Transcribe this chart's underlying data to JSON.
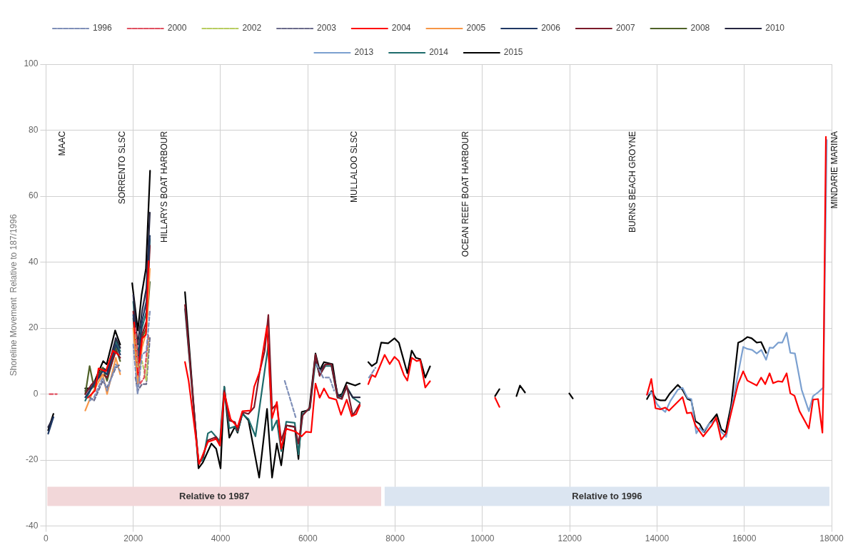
{
  "chart_data": {
    "type": "line",
    "ylabel": "Shoreline Movement  Relative to 187/1996",
    "xlim": [
      0,
      18000
    ],
    "xticks": [
      0,
      2000,
      4000,
      6000,
      8000,
      10000,
      12000,
      14000,
      16000,
      18000
    ],
    "ylim": [
      -40,
      100
    ],
    "yticks": [
      -40,
      -20,
      0,
      20,
      40,
      60,
      80,
      100
    ],
    "grid": true,
    "legend": "top",
    "marker": "none",
    "annotations": [
      "MAAC",
      "SORRENTO SLSC",
      "HILLARYS BOAT HARBOUR",
      "MULLALOO SLSC",
      "OCEAN REEF BOAT HARBOUR",
      "BURNS BEACH GROYNE",
      "MINDARIE MARINA"
    ],
    "bands": [
      {
        "axis": "x",
        "from": 30,
        "to": 7680,
        "label": "Relative to 1987",
        "color": "#f2d7d9"
      },
      {
        "axis": "x",
        "from": 7760,
        "to": 17950,
        "label": "Relative to 1996",
        "color": "#dbe5f1"
      }
    ],
    "series": [
      {
        "name": "1996",
        "color": "#7f8fb8",
        "line_style": "dashed",
        "x": [
          1000,
          1100,
          1300,
          1400,
          1600,
          1700,
          1850,
          2000,
          2100,
          2200,
          2300,
          2380,
          4000,
          5470,
          5720,
          6000,
          6200,
          6350,
          6500,
          6600,
          7000,
          7400,
          7550
        ],
        "values": [
          -2,
          -1,
          5,
          1,
          9,
          7,
          null,
          15,
          0,
          12,
          13,
          25,
          null,
          4,
          -7,
          null,
          9,
          5,
          5,
          1,
          null,
          5,
          8
        ]
      },
      {
        "name": "2000",
        "color": "#e05060",
        "line_style": "dashed",
        "x": [
          80,
          250,
          1000,
          2050,
          2150,
          2250,
          2350
        ],
        "values": [
          0,
          0,
          null,
          20,
          3,
          5,
          18
        ]
      },
      {
        "name": "2002",
        "color": "#b8cc60",
        "line_style": "dashed",
        "x": [
          2050,
          2100,
          2200,
          2300,
          2350
        ],
        "values": [
          18,
          8,
          10,
          4,
          17
        ]
      },
      {
        "name": "2003",
        "color": "#6a6a8a",
        "line_style": "dashed",
        "x": [
          1000,
          1100,
          1300,
          1400,
          1600,
          1700,
          1850,
          2050,
          2100,
          2200,
          2300,
          2380
        ],
        "values": [
          -1,
          -2,
          4,
          2,
          8,
          9,
          null,
          5,
          1,
          3,
          3,
          17
        ]
      },
      {
        "name": "2004",
        "color": "#ff0000",
        "line_style": "solid",
        "x": [
          960,
          1125,
          1205,
          1370,
          1535,
          1665,
          1850,
          2020,
          2110,
          2205,
          2290,
          2350,
          2800,
          3185,
          3270,
          3510,
          3710,
          3900,
          3985,
          4085,
          4230,
          4390,
          4500,
          4690,
          4770,
          4900,
          5065,
          5180,
          5290,
          5390,
          5505,
          5720,
          5860,
          5960,
          6075,
          6175,
          6270,
          6370,
          6485,
          6650,
          6760,
          6890,
          7005,
          7105,
          7190,
          7300,
          7385,
          7465,
          7545,
          7760,
          7875,
          7985,
          8085,
          8200,
          8280,
          8380,
          8495,
          8575,
          8690,
          8800,
          9500,
          10290,
          10390,
          12000,
          13770,
          13870,
          13965,
          14080,
          14190,
          14275,
          14585,
          14685,
          14785,
          14880,
          15060,
          15255,
          15355,
          15470,
          15585,
          15860,
          15975,
          16070,
          16285,
          16385,
          16480,
          16580,
          16660,
          16775,
          16870,
          16970,
          17055,
          17150,
          17265,
          17480,
          17575,
          17690,
          17790,
          17810,
          17870
        ],
        "values": [
          -1.1,
          1.1,
          7.8,
          6.9,
          13.2,
          11.9,
          null,
          21.7,
          5.8,
          16.9,
          18,
          40.3,
          null,
          9.7,
          3.9,
          -21.2,
          -14.5,
          -13.6,
          -15.6,
          0.4,
          -7.6,
          -10,
          -5.2,
          -5,
          2.2,
          6.9,
          20.6,
          -7.3,
          -2.4,
          -16.6,
          -10.5,
          -11.4,
          -12.8,
          -11.4,
          -11.6,
          3.2,
          -1.1,
          1.7,
          -1.1,
          -1.7,
          -6.3,
          -1.7,
          -6.7,
          -6.1,
          -3.5,
          null,
          3,
          5.8,
          5.2,
          11.9,
          9.1,
          11.3,
          10,
          5.8,
          4.1,
          11,
          10,
          10.3,
          2,
          3.9,
          null,
          -1.1,
          -3.9,
          null,
          -0.2,
          4.6,
          -4.3,
          -4.6,
          -4.1,
          -5,
          -0.9,
          -5.8,
          -5.6,
          -9.5,
          -12.8,
          -9.5,
          -7.1,
          -13.8,
          -11.9,
          3.2,
          6.9,
          4.1,
          2.6,
          5,
          3,
          6.3,
          3.3,
          3.9,
          3.7,
          6.3,
          0.2,
          -0.5,
          -5.2,
          -10.4,
          -1.7,
          -1.5,
          -11.7,
          1.3,
          78
        ]
      },
      {
        "name": "2005",
        "color": "#f79646",
        "line_style": "solid",
        "x": [
          900,
          1050,
          1300,
          1400,
          1600,
          1700,
          1850,
          2000,
          2100,
          2200,
          2300,
          2380
        ],
        "values": [
          -5,
          0,
          6,
          0,
          11,
          6,
          null,
          20,
          3,
          14,
          19,
          38
        ]
      },
      {
        "name": "2006",
        "color": "#1f3864",
        "line_style": "solid",
        "x": [
          50,
          170,
          500,
          900,
          1050,
          1300,
          1400,
          1600,
          1700,
          1850,
          2000,
          2100,
          2200,
          2300,
          2380
        ],
        "values": [
          -12,
          -7,
          null,
          -1,
          2,
          7,
          6,
          15,
          12,
          null,
          24,
          10,
          22,
          28,
          48
        ]
      },
      {
        "name": "2007",
        "color": "#7b1a2a",
        "line_style": "solid",
        "x": [
          900,
          1050,
          1300,
          1400,
          1600,
          1700,
          1850,
          2000,
          2100,
          2200,
          2300,
          2380,
          2800,
          3185,
          3495,
          3595,
          3710,
          3900,
          3985,
          4085,
          4200,
          4330,
          4390,
          4500,
          4640,
          4770,
          4900,
          5010,
          5095,
          5180,
          5290,
          5390,
          5505,
          5700,
          5785,
          5880,
          6050,
          6175,
          6270,
          6400,
          6540,
          6680,
          6780,
          6890,
          7030,
          7190
        ],
        "values": [
          0,
          3,
          6,
          5,
          13,
          11,
          null,
          25,
          8,
          18,
          22,
          45,
          null,
          27,
          -21,
          -19,
          -14,
          -13,
          -15.5,
          1,
          -8,
          -8.5,
          -11,
          -5.5,
          -6,
          -4,
          7,
          13,
          24,
          -4.5,
          -3,
          -14,
          -9.5,
          -10,
          -15,
          -6.5,
          -4,
          12,
          5.5,
          9,
          9,
          -1,
          -1.5,
          2.5,
          -6.5,
          -3
        ]
      },
      {
        "name": "2008",
        "color": "#4f6228",
        "line_style": "solid",
        "x": [
          900,
          1000,
          1100,
          1300,
          1400,
          1600,
          1700,
          1850,
          2000,
          2100,
          2200,
          2300,
          2380
        ],
        "values": [
          0,
          8.5,
          2,
          8,
          4,
          14,
          10,
          null,
          23,
          6,
          17,
          20,
          34
        ]
      },
      {
        "name": "2010",
        "color": "#262640",
        "line_style": "solid",
        "x": [
          50,
          170,
          500,
          900,
          1050,
          1300,
          1400,
          1600,
          1700,
          1850,
          2000,
          2100,
          2200,
          2300,
          2380,
          4000,
          6175,
          6270,
          6400,
          6540,
          6680,
          6780,
          6890,
          7030,
          7190
        ],
        "values": [
          -10,
          -7,
          null,
          1,
          2,
          8,
          7,
          17,
          14,
          null,
          30,
          15,
          25,
          32,
          55,
          null,
          10,
          7,
          9,
          9,
          0,
          -1,
          2,
          -1,
          -1
        ]
      },
      {
        "name": "2013",
        "color": "#7ba0d0",
        "line_style": "solid",
        "x": [
          13770,
          13870,
          13985,
          14080,
          14190,
          14310,
          14475,
          14585,
          14700,
          14785,
          14900,
          14980,
          15060,
          15200,
          15355,
          15470,
          15585,
          15700,
          15975,
          16070,
          16180,
          16285,
          16390,
          16500,
          16580,
          16660,
          16775,
          16870,
          16970,
          17055,
          17160,
          17315,
          17480,
          17575,
          17680,
          17810,
          17890
        ],
        "values": [
          -0.2,
          0.6,
          -2.8,
          -4.3,
          -5.4,
          -2,
          1.3,
          1.9,
          -1.2,
          -1.5,
          -11.9,
          -10.2,
          -11.5,
          -9,
          -7.8,
          -11.5,
          -13,
          -4.8,
          14.3,
          13.7,
          13.4,
          12.3,
          13.4,
          10.4,
          14.1,
          14,
          15.6,
          15.6,
          18.6,
          12.5,
          12.3,
          1.3,
          -5.2,
          -0.6,
          0.4,
          2,
          77
        ]
      },
      {
        "name": "2014",
        "color": "#1d6b6b",
        "line_style": "solid",
        "x": [
          900,
          1050,
          1300,
          1400,
          1600,
          1700,
          1850,
          2000,
          2100,
          2200,
          2300,
          2380,
          2800,
          3185,
          3495,
          3595,
          3710,
          3790,
          3985,
          4085,
          4200,
          4330,
          4390,
          4500,
          4640,
          4800,
          5095,
          5180,
          5290,
          5390,
          5505,
          5700,
          5785,
          5880,
          6050,
          6175,
          6270,
          6400,
          6540,
          6680,
          6780,
          6890,
          7030,
          7190
        ],
        "values": [
          -2,
          2,
          7,
          6,
          16,
          13,
          null,
          28,
          12,
          20,
          25,
          47,
          null,
          25.8,
          -20.7,
          -20,
          -11.9,
          -11.3,
          -14.3,
          2.2,
          -10.4,
          -9.8,
          -11.4,
          -6.1,
          -7.6,
          -12.8,
          15,
          -11,
          -8,
          -17.3,
          -8.4,
          -8.7,
          -18.3,
          -6.1,
          -4.3,
          10,
          5.8,
          8.5,
          8.5,
          -1.1,
          -0.4,
          2.2,
          -1.1,
          -2.6
        ]
      },
      {
        "name": "2015",
        "color": "#000000",
        "line_style": "solid",
        "x": [
          50,
          170,
          500,
          898,
          1045,
          1310,
          1390,
          1585,
          1700,
          1850,
          1975,
          2105,
          2190,
          2290,
          2385,
          2800,
          3185,
          3495,
          3595,
          3790,
          3900,
          4000,
          4085,
          4200,
          4330,
          4390,
          4500,
          4640,
          4885,
          5065,
          5180,
          5290,
          5390,
          5505,
          5700,
          5785,
          5860,
          6030,
          6175,
          6270,
          6370,
          6565,
          6680,
          6780,
          6890,
          7085,
          7190,
          7300,
          7385,
          7465,
          7575,
          7680,
          7840,
          7985,
          8085,
          8280,
          8380,
          8475,
          8575,
          8690,
          8800,
          9500,
          10290,
          10390,
          10600,
          10780,
          10860,
          10975,
          11500,
          11990,
          12070,
          13000,
          13770,
          13870,
          13985,
          14080,
          14190,
          14295,
          14475,
          14585,
          14700,
          14785,
          14880,
          14980,
          15080,
          15190,
          15370,
          15470,
          15570,
          15700,
          15860,
          15960,
          16070,
          16170,
          16285,
          16385,
          16500
        ],
        "values": [
          -11,
          -6,
          null,
          1.7,
          1.7,
          10,
          9,
          19.3,
          15,
          null,
          33.6,
          19.3,
          30,
          38,
          67.7,
          null,
          30.9,
          -22.5,
          -20.7,
          -15,
          -16.6,
          -22.5,
          2.2,
          -13.2,
          -9.9,
          -11.7,
          -5.8,
          -8,
          -25.3,
          -4.5,
          -25.3,
          -15,
          -21.6,
          -9.5,
          -9.9,
          -19.7,
          -5.4,
          -4.8,
          12.3,
          7.2,
          9.7,
          9.1,
          -0.6,
          0,
          3.5,
          2.6,
          3.2,
          null,
          9.7,
          8.5,
          9.5,
          15.6,
          15.4,
          16.9,
          15.6,
          6.3,
          13.2,
          11,
          10.6,
          5,
          8.4,
          null,
          -0.6,
          1.5,
          null,
          -0.6,
          2.6,
          0.5,
          null,
          0.2,
          -1.3,
          null,
          -1.5,
          0.9,
          -1.5,
          -1.9,
          -1.9,
          0.2,
          2.8,
          1.3,
          -1.5,
          -1.9,
          -8.2,
          -9.1,
          -11.5,
          -9.1,
          -6.1,
          -10.6,
          -11.7,
          -3.3,
          15.6,
          16.2,
          17.3,
          16.9,
          15.6,
          15.8,
          12.5
        ]
      }
    ]
  }
}
